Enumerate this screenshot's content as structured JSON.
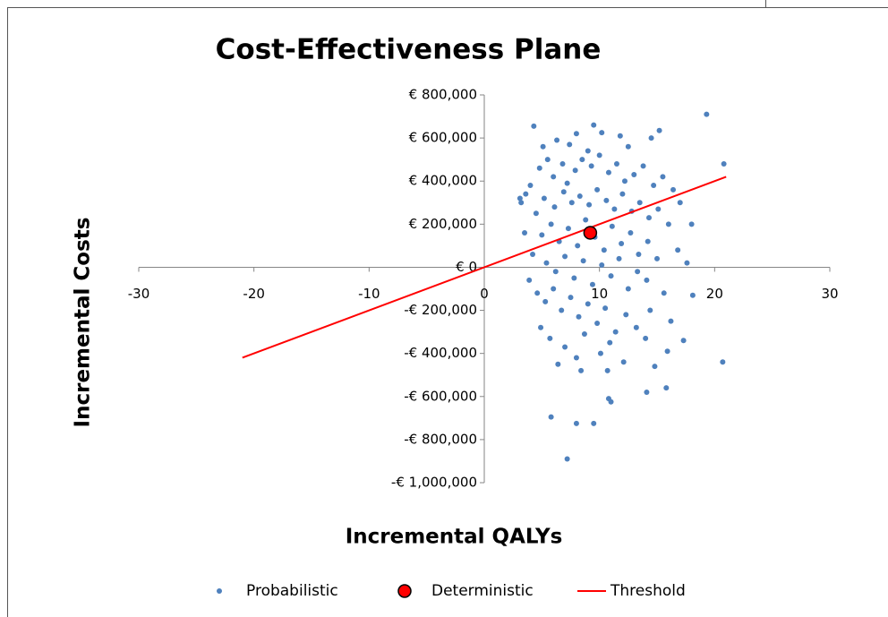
{
  "chart_data": {
    "type": "scatter",
    "title": "Cost-Effectiveness Plane",
    "x_label": "Incremental QALYs",
    "y_label": "Incremental Costs",
    "xlim": [
      -30,
      30
    ],
    "xticks": [
      -30,
      -20,
      -10,
      0,
      10,
      20,
      30
    ],
    "ylim": [
      -1000000,
      800000
    ],
    "yticks": [
      {
        "value": 800000,
        "label": "€ 800,000"
      },
      {
        "value": 600000,
        "label": "€ 600,000"
      },
      {
        "value": 400000,
        "label": "€ 400,000"
      },
      {
        "value": 200000,
        "label": "€ 200,000"
      },
      {
        "value": 0,
        "label": "€ 0"
      },
      {
        "value": -200000,
        "label": "-€ 200,000"
      },
      {
        "value": -400000,
        "label": "-€ 400,000"
      },
      {
        "value": -600000,
        "label": "-€ 600,000"
      },
      {
        "value": -800000,
        "label": "-€ 800,000"
      },
      {
        "value": -1000000,
        "label": "-€ 1,000,000"
      }
    ],
    "legend": "bottom",
    "series": [
      {
        "name": "Probabilistic",
        "color": "#4f81bd",
        "marker": "dot",
        "x": [
          19.3,
          9.5,
          4.3,
          8.0,
          15.2,
          11.8,
          6.3,
          10.2,
          14.5,
          5.1,
          7.4,
          12.5,
          9.0,
          3.2,
          3.6,
          4.0,
          4.8,
          5.5,
          6.0,
          6.8,
          7.2,
          7.9,
          8.5,
          9.3,
          10.0,
          10.8,
          11.5,
          12.2,
          13.0,
          13.8,
          14.7,
          15.5,
          16.4,
          17.0,
          20.8,
          4.5,
          5.2,
          6.1,
          6.9,
          7.6,
          8.3,
          9.1,
          9.8,
          10.6,
          11.3,
          12.0,
          12.8,
          13.5,
          14.3,
          15.1,
          16.0,
          18.0,
          5.0,
          5.8,
          6.5,
          7.3,
          8.1,
          8.8,
          9.6,
          10.4,
          11.1,
          11.9,
          12.7,
          13.4,
          14.2,
          15.0,
          16.8,
          17.6,
          4.2,
          5.4,
          6.2,
          7.0,
          7.8,
          8.6,
          9.4,
          10.2,
          11.0,
          11.7,
          12.5,
          13.3,
          14.1,
          15.6,
          18.1,
          4.6,
          5.3,
          6.0,
          6.7,
          7.5,
          8.2,
          9.0,
          9.8,
          10.5,
          11.4,
          12.3,
          13.2,
          14.4,
          16.2,
          17.3,
          4.9,
          5.7,
          7.0,
          8.0,
          8.7,
          10.1,
          10.9,
          12.1,
          14.0,
          15.9,
          14.8,
          14.1,
          15.8,
          20.7,
          10.7,
          10.8,
          11.0,
          5.8,
          8.0,
          9.5,
          7.2,
          8.4,
          6.4,
          3.9,
          3.5,
          3.1
        ],
        "values": [
          710000,
          660000,
          655000,
          620000,
          635000,
          610000,
          590000,
          625000,
          600000,
          560000,
          570000,
          560000,
          540000,
          300000,
          340000,
          380000,
          460000,
          500000,
          420000,
          480000,
          390000,
          450000,
          500000,
          470000,
          520000,
          440000,
          480000,
          400000,
          430000,
          470000,
          380000,
          420000,
          360000,
          300000,
          480000,
          250000,
          320000,
          280000,
          350000,
          300000,
          330000,
          290000,
          360000,
          310000,
          270000,
          340000,
          260000,
          300000,
          230000,
          270000,
          200000,
          200000,
          150000,
          200000,
          120000,
          180000,
          100000,
          220000,
          140000,
          80000,
          190000,
          110000,
          160000,
          60000,
          120000,
          40000,
          80000,
          20000,
          60000,
          20000,
          -20000,
          50000,
          -50000,
          30000,
          -80000,
          10000,
          -40000,
          40000,
          -100000,
          -20000,
          -60000,
          -120000,
          -130000,
          -120000,
          -160000,
          -100000,
          -200000,
          -140000,
          -230000,
          -170000,
          -260000,
          -190000,
          -300000,
          -220000,
          -280000,
          -200000,
          -250000,
          -340000,
          -280000,
          -330000,
          -370000,
          -420000,
          -310000,
          -400000,
          -350000,
          -440000,
          -330000,
          -390000,
          -460000,
          -580000,
          -560000,
          -440000,
          -480000,
          -610000,
          -625000,
          -695000,
          -725000,
          -725000,
          -890000,
          -480000,
          -450000,
          -60000,
          160000,
          320000
        ]
      },
      {
        "name": "Deterministic",
        "color": "#ff0000",
        "marker": "circle",
        "x": [
          9.2
        ],
        "values": [
          160000
        ]
      },
      {
        "name": "Threshold",
        "color": "#ff0000",
        "marker": "line",
        "x": [
          -21,
          21
        ],
        "values": [
          -420000,
          420000
        ]
      }
    ]
  }
}
